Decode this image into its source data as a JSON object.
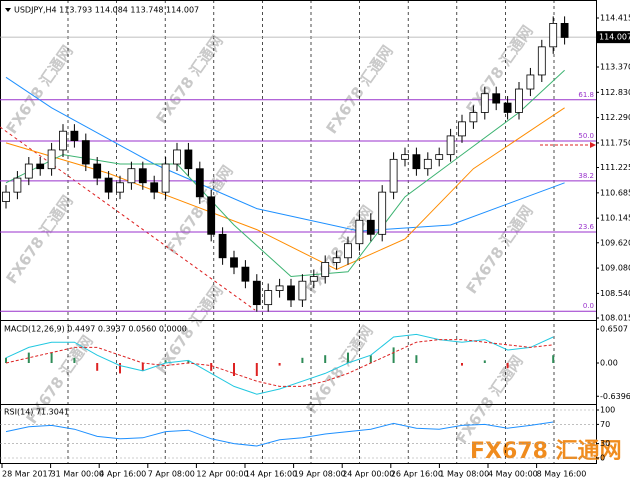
{
  "watermark": "FX678 汇通网",
  "x_labels": [
    "28 Mar 2017",
    "31 Mar 00:00",
    "4 Apr 16:00",
    "7 Apr 08:00",
    "12 Apr 00:00",
    "14 Apr 16:00",
    "19 Apr 08:00",
    "24 Apr 00:00",
    "26 Apr 16:00",
    "1 May 08:00",
    "4 May 00:00",
    "8 May 16:00"
  ],
  "chart_data": [
    {
      "type": "candlestick",
      "title": "USDJPY,H4  113.793 114.084 113.748 114.007",
      "ylim": [
        108.015,
        114.714
      ],
      "yticks": [
        114.415,
        {
          "value": 113.37,
          "label": "113.370"
        },
        {
          "value": 112.83,
          "label": "112.830"
        },
        {
          "value": 112.29,
          "label": "112.290"
        },
        {
          "value": 111.75,
          "label": "111.750"
        },
        111.225,
        110.685,
        110.145,
        {
          "value": 109.62,
          "label": "109.620"
        },
        {
          "value": 109.08,
          "label": "109.080"
        },
        {
          "value": 108.54,
          "label": "108.540"
        },
        108.015
      ],
      "last_price": 114.007,
      "fib_color": "#9932cc",
      "fib_levels": [
        {
          "label": "61.8",
          "value": 112.67
        },
        {
          "label": "50.0",
          "value": 111.79
        },
        {
          "label": "38.2",
          "value": 110.94
        },
        {
          "label": "23.6",
          "value": 109.85
        },
        {
          "label": "0.0",
          "value": 108.16
        }
      ],
      "ohlc": [
        [
          110.5,
          110.85,
          110.35,
          110.7
        ],
        [
          110.7,
          111.15,
          110.55,
          111
        ],
        [
          111,
          111.45,
          110.85,
          111.3
        ],
        [
          111.3,
          111.45,
          111.05,
          111.2
        ],
        [
          111.2,
          111.75,
          111.05,
          111.6
        ],
        [
          111.6,
          112.15,
          111.45,
          112
        ],
        [
          112,
          112.15,
          111.65,
          111.8
        ],
        [
          111.8,
          111.95,
          111.15,
          111.3
        ],
        [
          111.3,
          111.45,
          110.85,
          111
        ],
        [
          111,
          111.15,
          110.55,
          110.7
        ],
        [
          110.7,
          111.05,
          110.55,
          110.9
        ],
        [
          110.9,
          111.35,
          110.75,
          111.2
        ],
        [
          111.2,
          111.35,
          110.75,
          110.9
        ],
        [
          110.9,
          111.05,
          110.55,
          110.7
        ],
        [
          110.7,
          111.45,
          110.55,
          111.3
        ],
        [
          111.3,
          111.75,
          111.15,
          111.6
        ],
        [
          111.6,
          111.75,
          111.05,
          111.2
        ],
        [
          111.2,
          111.35,
          110.45,
          110.6
        ],
        [
          110.6,
          110.75,
          109.65,
          109.8
        ],
        [
          109.8,
          109.95,
          109.15,
          109.3
        ],
        [
          109.3,
          109.45,
          108.95,
          109.1
        ],
        [
          109.1,
          109.25,
          108.65,
          108.8
        ],
        [
          108.8,
          108.95,
          108.15,
          108.3
        ],
        [
          108.3,
          108.75,
          108.15,
          108.6
        ],
        [
          108.6,
          108.85,
          108.45,
          108.7
        ],
        [
          108.7,
          108.85,
          108.25,
          108.4
        ],
        [
          108.4,
          108.95,
          108.25,
          108.8
        ],
        [
          108.8,
          109.05,
          108.65,
          108.9
        ],
        [
          108.9,
          109.35,
          108.75,
          109.2
        ],
        [
          109.2,
          109.45,
          109.05,
          109.3
        ],
        [
          109.3,
          109.75,
          109.15,
          109.6
        ],
        [
          109.6,
          110.25,
          109.45,
          110.1
        ],
        [
          110.1,
          110.25,
          109.65,
          109.8
        ],
        [
          109.8,
          110.85,
          109.65,
          110.7
        ],
        [
          110.7,
          111.55,
          110.55,
          111.4
        ],
        [
          111.4,
          111.65,
          111.25,
          111.5
        ],
        [
          111.5,
          111.65,
          111.05,
          111.2
        ],
        [
          111.2,
          111.55,
          111.05,
          111.4
        ],
        [
          111.4,
          111.65,
          111.25,
          111.5
        ],
        [
          111.5,
          112.05,
          111.35,
          111.9
        ],
        [
          111.9,
          112.35,
          111.75,
          112.2
        ],
        [
          112.2,
          112.55,
          112.05,
          112.4
        ],
        [
          112.4,
          112.95,
          112.25,
          112.8
        ],
        [
          112.8,
          112.95,
          112.45,
          112.6
        ],
        [
          112.6,
          112.75,
          112.25,
          112.4
        ],
        [
          112.4,
          113.05,
          112.25,
          112.9
        ],
        [
          112.9,
          113.35,
          112.75,
          113.2
        ],
        [
          113.2,
          113.95,
          113.05,
          113.8
        ],
        [
          113.8,
          114.45,
          113.65,
          114.3
        ],
        [
          114.3,
          114.45,
          113.85,
          114
        ]
      ],
      "overlays": [
        {
          "color": "#1e90ff",
          "x": [
            0,
            4,
            13,
            22,
            31,
            39,
            49
          ],
          "values": [
            113.15,
            112.5,
            111.3,
            110.35,
            109.87,
            110.0,
            110.9
          ]
        },
        {
          "color": "#ff8c00",
          "x": [
            0,
            9,
            22,
            29,
            35,
            41,
            49
          ],
          "values": [
            111.75,
            111.1,
            109.9,
            109.05,
            109.7,
            111.2,
            112.5
          ]
        },
        {
          "color": "#3cb371",
          "x": [
            0,
            5,
            10,
            15,
            20,
            25,
            30,
            35,
            40,
            45,
            49
          ],
          "values": [
            110.9,
            111.5,
            111.3,
            111.3,
            110.0,
            108.9,
            109.0,
            110.6,
            111.5,
            112.4,
            113.3
          ]
        }
      ]
    },
    {
      "type": "line",
      "title": "MACD(12,26,9) 0.4497 0.3937 0.0560 0.0000",
      "ylim": [
        -0.75,
        0.75
      ],
      "yticks": [
        0.6507,
        {
          "value": 0,
          "label": "0.00"
        },
        -0.6396
      ],
      "x": [
        0,
        2,
        4,
        6,
        8,
        10,
        12,
        14,
        16,
        18,
        20,
        22,
        24,
        26,
        28,
        30,
        32,
        34,
        36,
        38,
        40,
        42,
        44,
        46,
        48
      ],
      "series": [
        {
          "style": "bar",
          "color": "#2e8b57",
          "negative_color": "#dd2222",
          "values": [
            0.1,
            0.2,
            0.2,
            0.1,
            -0.15,
            -0.2,
            -0.15,
            0.05,
            0.05,
            -0.15,
            -0.25,
            -0.25,
            -0.05,
            0.1,
            0.15,
            0.2,
            0.15,
            0.3,
            0.15,
            0,
            -0.05,
            0.05,
            -0.1,
            0,
            0.15
          ]
        },
        {
          "color": "#22c8e0",
          "values": [
            0.1,
            0.3,
            0.4,
            0.4,
            0.15,
            -0.05,
            -0.15,
            0,
            0.05,
            -0.2,
            -0.45,
            -0.6,
            -0.5,
            -0.35,
            -0.2,
            0,
            0.15,
            0.5,
            0.55,
            0.45,
            0.4,
            0.45,
            0.25,
            0.3,
            0.5
          ]
        },
        {
          "color": "#dd2222",
          "dash": true,
          "values": [
            0,
            0.1,
            0.2,
            0.3,
            0.3,
            0.15,
            0,
            -0.05,
            0,
            -0.05,
            -0.2,
            -0.35,
            -0.45,
            -0.45,
            -0.35,
            -0.2,
            0,
            0.2,
            0.4,
            0.45,
            0.45,
            0.4,
            0.35,
            0.3,
            0.35
          ]
        }
      ]
    },
    {
      "type": "line",
      "title": "RSI(14) 71.3041",
      "ylim": [
        0,
        100
      ],
      "yticks": [
        100,
        70,
        30,
        0
      ],
      "grid": true,
      "x": [
        0,
        2,
        4,
        6,
        8,
        10,
        12,
        14,
        16,
        18,
        20,
        22,
        24,
        26,
        28,
        30,
        32,
        34,
        36,
        38,
        40,
        42,
        44,
        46,
        48
      ],
      "series": [
        {
          "color": "#1e90ff",
          "values": [
            55,
            65,
            68,
            60,
            45,
            40,
            42,
            55,
            58,
            40,
            30,
            25,
            38,
            42,
            50,
            55,
            60,
            72,
            62,
            60,
            68,
            70,
            62,
            68,
            75
          ]
        }
      ]
    }
  ]
}
